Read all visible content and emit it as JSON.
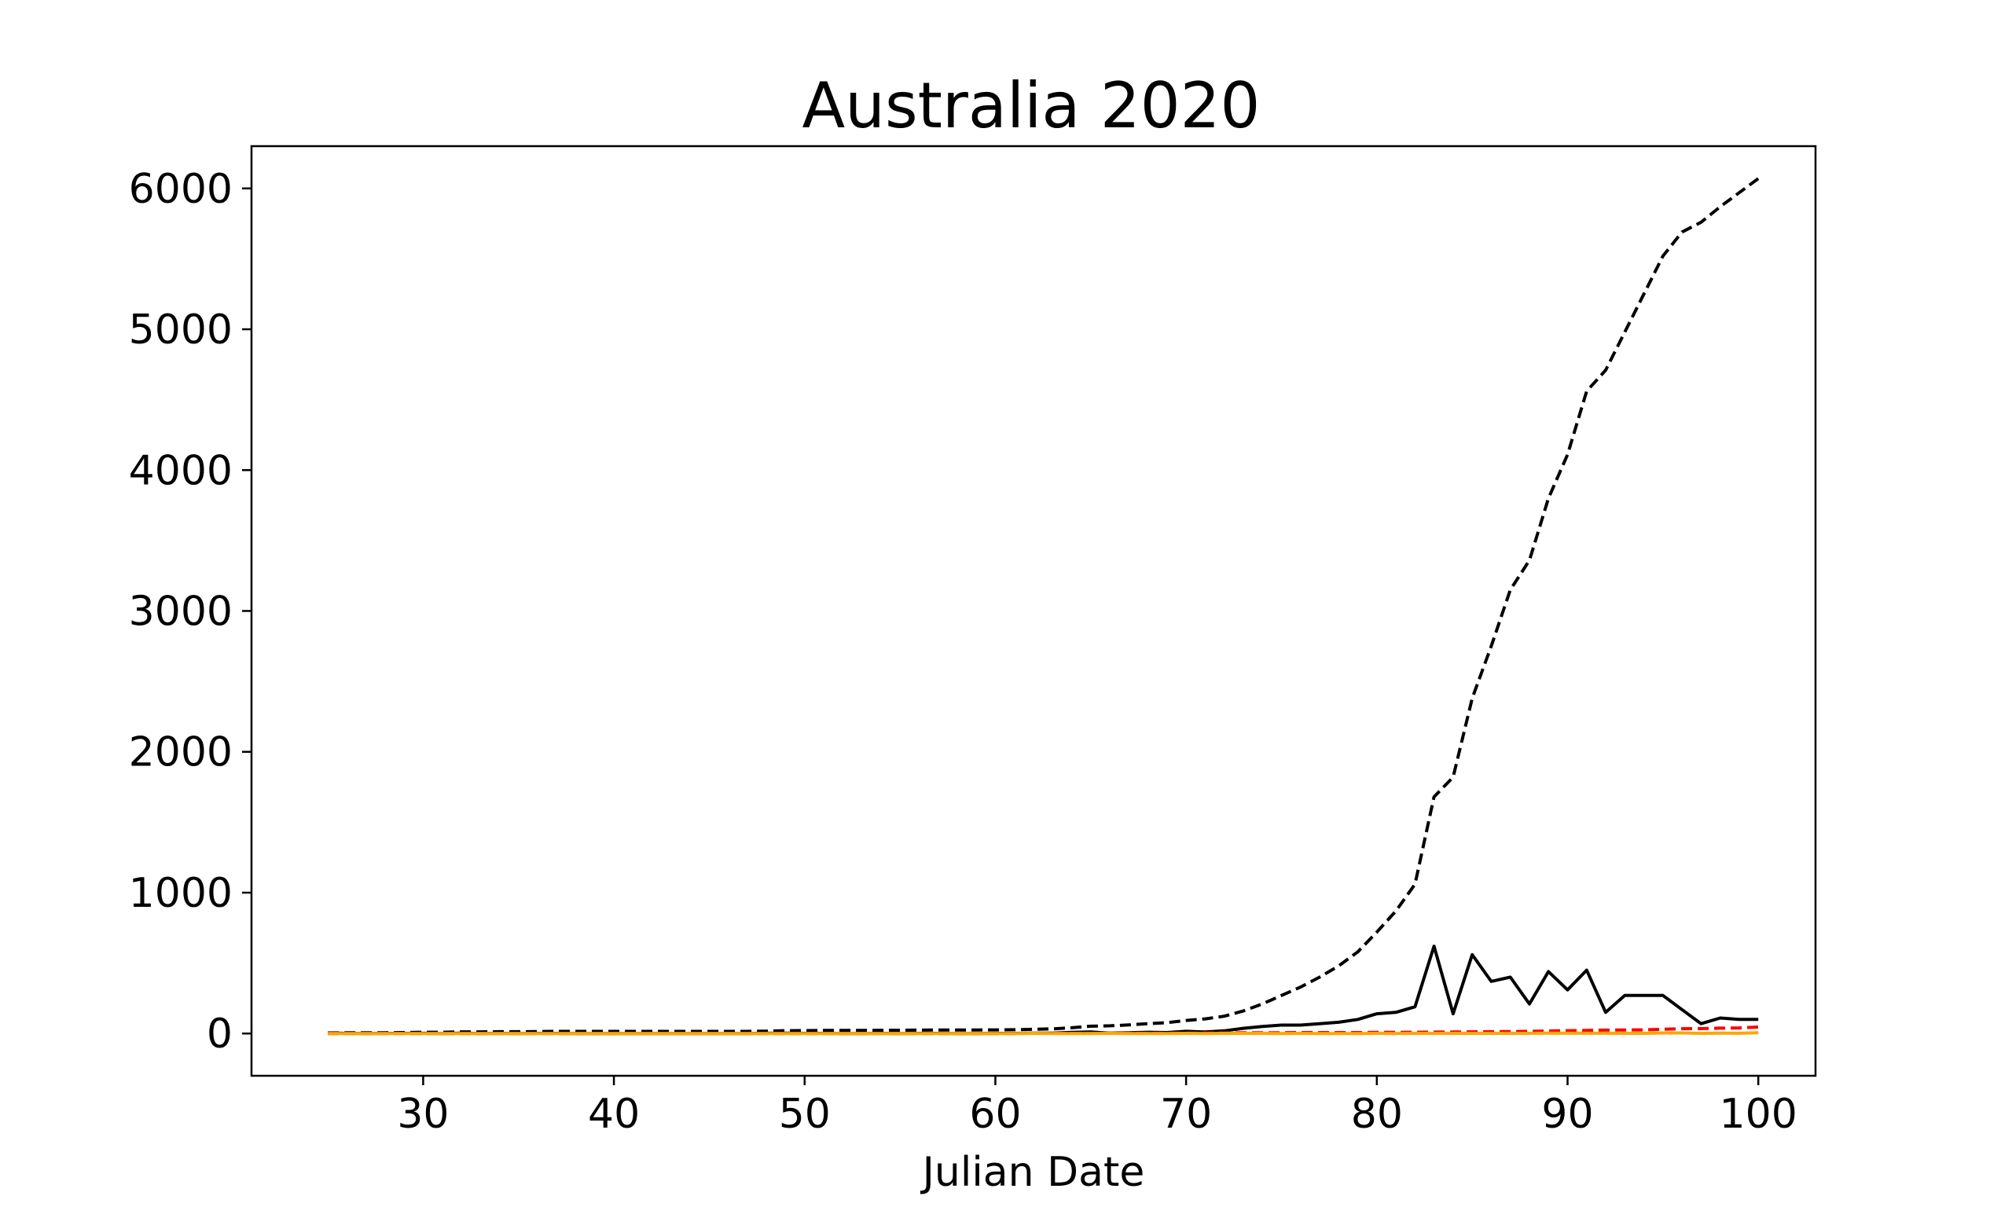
{
  "chart_data": {
    "type": "line",
    "title": "Australia 2020",
    "xlabel": "Julian Date",
    "ylabel": "",
    "xlim": [
      21,
      103
    ],
    "ylim": [
      -300,
      6300
    ],
    "xticks": [
      30,
      40,
      50,
      60,
      70,
      80,
      90,
      100
    ],
    "yticks": [
      0,
      1000,
      2000,
      3000,
      4000,
      5000,
      6000
    ],
    "grid": false,
    "legend": "none",
    "x": [
      25,
      26,
      27,
      28,
      29,
      30,
      31,
      32,
      33,
      34,
      35,
      36,
      37,
      38,
      39,
      40,
      41,
      42,
      43,
      44,
      45,
      46,
      47,
      48,
      49,
      50,
      51,
      52,
      53,
      54,
      55,
      56,
      57,
      58,
      59,
      60,
      61,
      62,
      63,
      64,
      65,
      66,
      67,
      68,
      69,
      70,
      71,
      72,
      73,
      74,
      75,
      76,
      77,
      78,
      79,
      80,
      81,
      82,
      83,
      84,
      85,
      86,
      87,
      88,
      89,
      90,
      91,
      92,
      93,
      94,
      95,
      96,
      97,
      98,
      99,
      100
    ],
    "series": [
      {
        "color": "#000000",
        "linestyle": "dashed",
        "values": [
          4,
          5,
          5,
          6,
          7,
          9,
          9,
          12,
          12,
          13,
          13,
          14,
          15,
          15,
          15,
          15,
          15,
          15,
          15,
          15,
          15,
          15,
          15,
          17,
          20,
          21,
          22,
          22,
          22,
          23,
          23,
          24,
          25,
          25,
          25,
          26,
          27,
          30,
          33,
          41,
          52,
          55,
          61,
          70,
          77,
          93,
          104,
          123,
          160,
          210,
          270,
          330,
          400,
          480,
          580,
          720,
          870,
          1060,
          1680,
          1820,
          2380,
          2750,
          3150,
          3360,
          3800,
          4110,
          4560,
          4710,
          4980,
          5250,
          5520,
          5690,
          5760,
          5870,
          5970,
          6070
        ]
      },
      {
        "color": "#000000",
        "linestyle": "solid",
        "values": [
          4,
          1,
          0,
          1,
          1,
          2,
          0,
          3,
          0,
          1,
          0,
          1,
          1,
          0,
          0,
          0,
          0,
          0,
          0,
          0,
          0,
          0,
          0,
          2,
          3,
          1,
          1,
          0,
          0,
          1,
          0,
          1,
          1,
          0,
          0,
          1,
          1,
          3,
          3,
          8,
          11,
          3,
          6,
          9,
          7,
          16,
          11,
          19,
          37,
          50,
          60,
          60,
          70,
          80,
          100,
          140,
          150,
          190,
          620,
          140,
          560,
          370,
          400,
          210,
          440,
          310,
          450,
          150,
          270,
          270,
          270,
          170,
          70,
          110,
          100,
          100
        ]
      },
      {
        "color": "#ff0000",
        "linestyle": "dashed",
        "values": [
          0,
          0,
          0,
          0,
          0,
          0,
          0,
          0,
          0,
          0,
          0,
          0,
          0,
          0,
          0,
          0,
          0,
          0,
          0,
          0,
          0,
          0,
          0,
          0,
          0,
          0,
          0,
          0,
          0,
          0,
          0,
          0,
          0,
          0,
          0,
          0,
          0,
          1,
          1,
          1,
          1,
          2,
          2,
          2,
          2,
          3,
          3,
          4,
          5,
          6,
          6,
          7,
          7,
          7,
          7,
          8,
          8,
          9,
          10,
          11,
          12,
          13,
          14,
          15,
          18,
          20,
          22,
          24,
          25,
          26,
          30,
          34,
          35,
          38,
          40,
          46
        ]
      },
      {
        "color": "#ffa500",
        "linestyle": "solid",
        "values": [
          0,
          0,
          0,
          0,
          0,
          0,
          0,
          0,
          0,
          0,
          0,
          0,
          0,
          0,
          0,
          0,
          0,
          0,
          0,
          0,
          0,
          0,
          0,
          0,
          0,
          0,
          0,
          0,
          0,
          0,
          0,
          0,
          0,
          0,
          0,
          0,
          0,
          1,
          0,
          0,
          0,
          1,
          0,
          0,
          0,
          1,
          0,
          1,
          1,
          1,
          0,
          1,
          0,
          0,
          0,
          1,
          0,
          1,
          1,
          1,
          1,
          1,
          1,
          1,
          3,
          2,
          2,
          2,
          1,
          1,
          4,
          4,
          1,
          3,
          2,
          6
        ]
      }
    ]
  }
}
